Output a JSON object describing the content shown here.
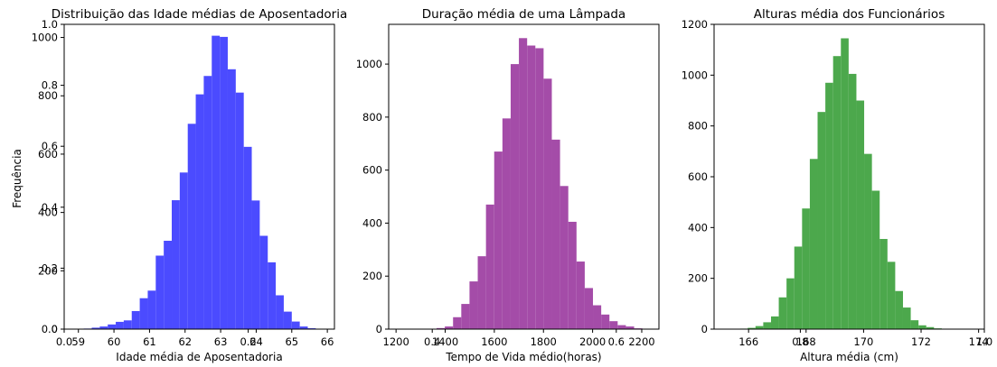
{
  "figure": {
    "ylabel": "Frequência",
    "overlay_axis": {
      "x_ticks": [
        0.0,
        0.2,
        0.4,
        0.6,
        0.8,
        1.0
      ],
      "x_tick_labels": [
        "0.0",
        "0.2",
        "0.4",
        "0.6",
        "0.8",
        "1.0"
      ],
      "y_ticks": [
        0.0,
        0.2,
        0.4,
        0.6,
        0.8,
        1.0
      ],
      "y_tick_labels": [
        "0.0",
        "0.2",
        "0.4",
        "0.6",
        "0.8",
        "1.0"
      ]
    }
  },
  "chart_data": [
    {
      "type": "bar",
      "title": "Distribuição das Idade médias de Aposentadoria",
      "xlabel": "Idade média de Aposentadoria",
      "ylabel": "",
      "color": "#4b4bff",
      "xlim": [
        58.6,
        66.2
      ],
      "ylim": [
        0,
        1045
      ],
      "x_ticks": [
        59,
        60,
        61,
        62,
        63,
        64,
        65,
        66
      ],
      "y_ticks": [
        0,
        200,
        400,
        600,
        800,
        1000
      ],
      "bin_start": 59.15,
      "bin_width": 0.225,
      "values": [
        2,
        5,
        9,
        16,
        25,
        30,
        62,
        106,
        132,
        252,
        303,
        442,
        537,
        704,
        805,
        868,
        1006,
        1002,
        891,
        811,
        625,
        441,
        320,
        229,
        116,
        60,
        26,
        9,
        3,
        1
      ]
    },
    {
      "type": "bar",
      "title": "Duração média de uma Lâmpada",
      "xlabel": "Tempo de Vida médio(horas)",
      "ylabel": "",
      "color": "#a44ca8",
      "xlim": [
        1170,
        2270
      ],
      "ylim": [
        0,
        1150
      ],
      "x_ticks": [
        1200,
        1400,
        1600,
        1800,
        2000,
        2200
      ],
      "y_ticks": [
        0,
        200,
        400,
        600,
        800,
        1000
      ],
      "bin_start": 1365,
      "bin_width": 33.5,
      "values": [
        4,
        10,
        45,
        95,
        180,
        275,
        470,
        670,
        795,
        1000,
        1098,
        1070,
        1060,
        945,
        715,
        540,
        405,
        255,
        155,
        90,
        55,
        30,
        15,
        10,
        3
      ]
    },
    {
      "type": "bar",
      "title": "Alturas média dos Funcionários",
      "xlabel": "Altura média (cm)",
      "ylabel": "",
      "color": "#4ca84c",
      "xlim": [
        164.8,
        174.2
      ],
      "ylim": [
        0,
        1200
      ],
      "x_ticks": [
        166,
        168,
        170,
        172,
        174
      ],
      "y_ticks": [
        0,
        200,
        400,
        600,
        800,
        1000,
        1200
      ],
      "bin_start": 165.7,
      "bin_width": 0.27,
      "values": [
        2,
        5,
        12,
        27,
        50,
        125,
        200,
        325,
        475,
        670,
        855,
        970,
        1075,
        1145,
        1005,
        900,
        690,
        545,
        355,
        265,
        150,
        85,
        35,
        15,
        8,
        3
      ]
    }
  ]
}
